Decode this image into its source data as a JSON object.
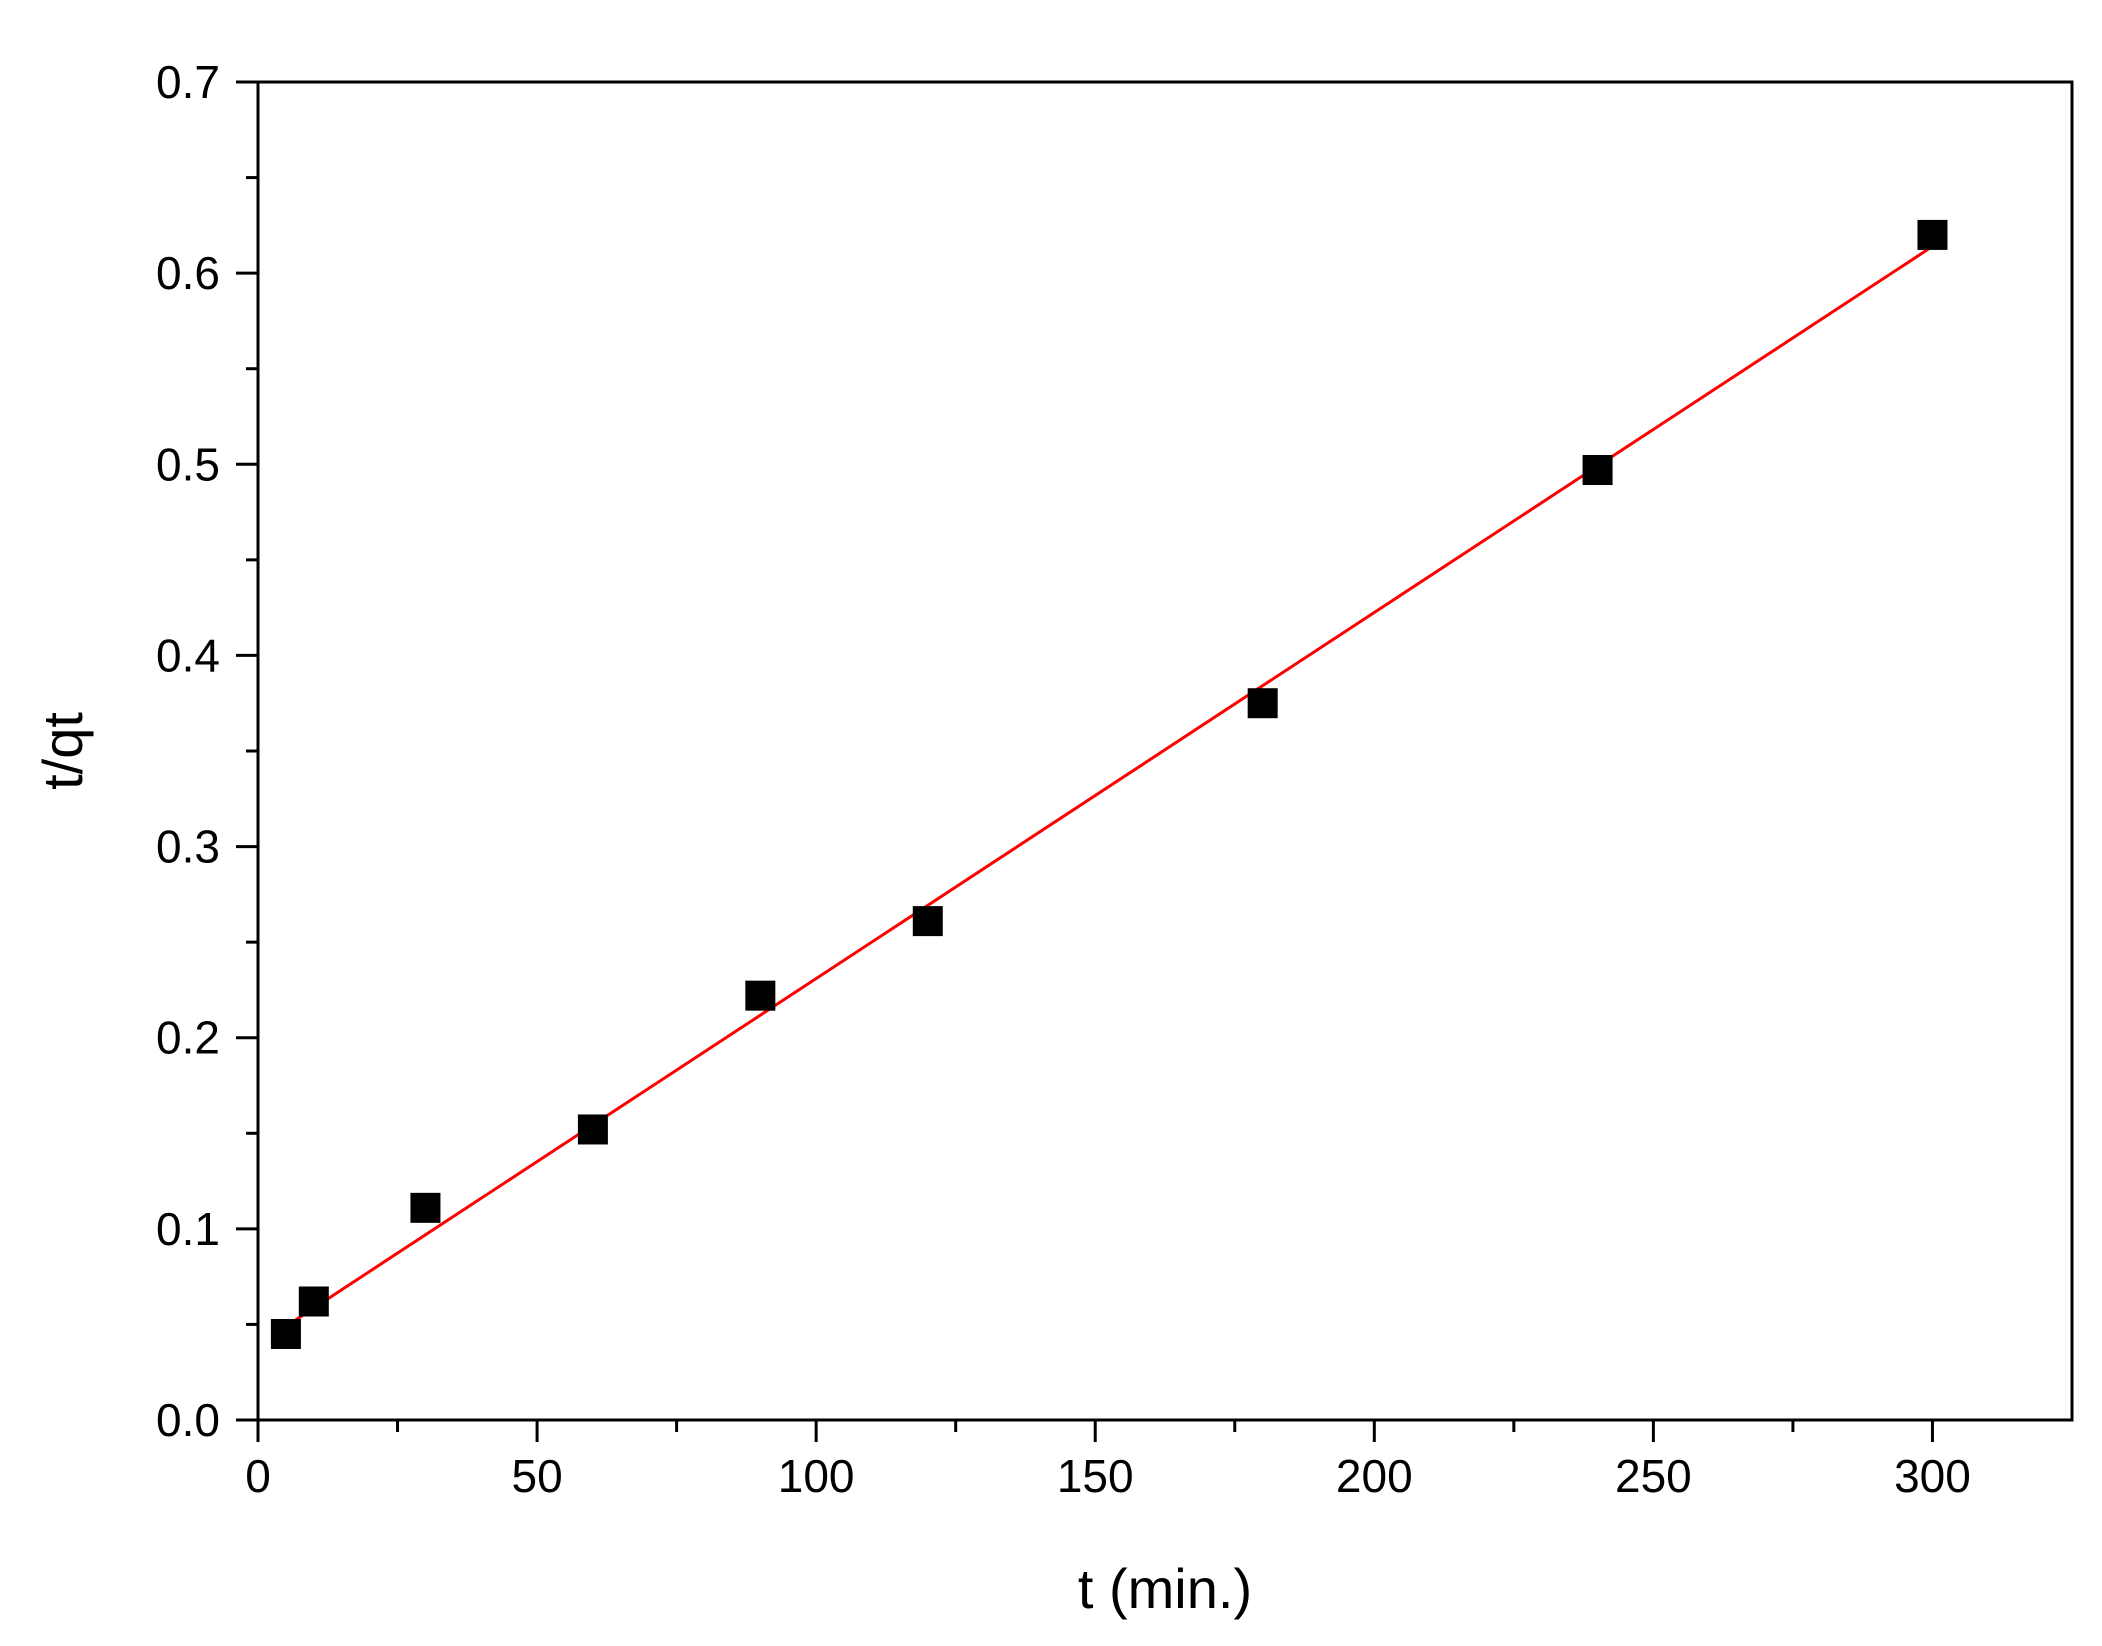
{
  "chart_data": {
    "type": "scatter",
    "title": "",
    "xlabel": "t (min.)",
    "ylabel": "t/qt",
    "xlim": [
      0,
      325
    ],
    "ylim": [
      0,
      0.7
    ],
    "x_ticks": [
      0,
      50,
      100,
      150,
      200,
      250,
      300
    ],
    "x_tick_labels": [
      "0",
      "50",
      "100",
      "150",
      "200",
      "250",
      "300"
    ],
    "y_ticks": [
      0,
      0.1,
      0.2,
      0.3,
      0.4,
      0.5,
      0.6,
      0.7
    ],
    "y_tick_labels": [
      "0.0",
      "0.1",
      "0.2",
      "0.3",
      "0.4",
      "0.5",
      "0.6",
      "0.7"
    ],
    "series": [
      {
        "marker": "square",
        "color": "#000000",
        "x": [
          5,
          10,
          30,
          60,
          90,
          120,
          180,
          240,
          300
        ],
        "y": [
          0.045,
          0.062,
          0.111,
          0.152,
          0.222,
          0.261,
          0.375,
          0.497,
          0.62
        ]
      }
    ],
    "fit_line": {
      "color": "#ff0000",
      "x": [
        5,
        300
      ],
      "y": [
        0.049,
        0.614
      ]
    },
    "grid": false,
    "legend": "none"
  }
}
